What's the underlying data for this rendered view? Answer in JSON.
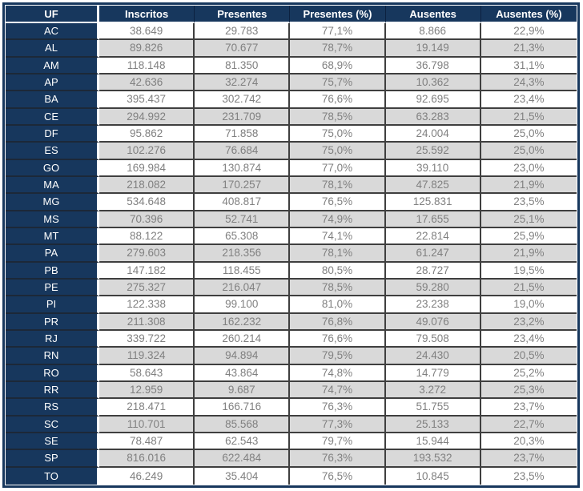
{
  "chart_data": {
    "type": "table",
    "title": "",
    "columns": [
      "UF",
      "Inscritos",
      "Presentes",
      "Presentes (%)",
      "Ausentes",
      "Ausentes (%)"
    ],
    "rows": [
      [
        "AC",
        "38.649",
        "29.783",
        "77,1%",
        "8.866",
        "22,9%"
      ],
      [
        "AL",
        "89.826",
        "70.677",
        "78,7%",
        "19.149",
        "21,3%"
      ],
      [
        "AM",
        "118.148",
        "81.350",
        "68,9%",
        "36.798",
        "31,1%"
      ],
      [
        "AP",
        "42.636",
        "32.274",
        "75,7%",
        "10.362",
        "24,3%"
      ],
      [
        "BA",
        "395.437",
        "302.742",
        "76,6%",
        "92.695",
        "23,4%"
      ],
      [
        "CE",
        "294.992",
        "231.709",
        "78,5%",
        "63.283",
        "21,5%"
      ],
      [
        "DF",
        "95.862",
        "71.858",
        "75,0%",
        "24.004",
        "25,0%"
      ],
      [
        "ES",
        "102.276",
        "76.684",
        "75,0%",
        "25.592",
        "25,0%"
      ],
      [
        "GO",
        "169.984",
        "130.874",
        "77,0%",
        "39.110",
        "23,0%"
      ],
      [
        "MA",
        "218.082",
        "170.257",
        "78,1%",
        "47.825",
        "21,9%"
      ],
      [
        "MG",
        "534.648",
        "408.817",
        "76,5%",
        "125.831",
        "23,5%"
      ],
      [
        "MS",
        "70.396",
        "52.741",
        "74,9%",
        "17.655",
        "25,1%"
      ],
      [
        "MT",
        "88.122",
        "65.308",
        "74,1%",
        "22.814",
        "25,9%"
      ],
      [
        "PA",
        "279.603",
        "218.356",
        "78,1%",
        "61.247",
        "21,9%"
      ],
      [
        "PB",
        "147.182",
        "118.455",
        "80,5%",
        "28.727",
        "19,5%"
      ],
      [
        "PE",
        "275.327",
        "216.047",
        "78,5%",
        "59.280",
        "21,5%"
      ],
      [
        "PI",
        "122.338",
        "99.100",
        "81,0%",
        "23.238",
        "19,0%"
      ],
      [
        "PR",
        "211.308",
        "162.232",
        "76,8%",
        "49.076",
        "23,2%"
      ],
      [
        "RJ",
        "339.722",
        "260.214",
        "76,6%",
        "79.508",
        "23,4%"
      ],
      [
        "RN",
        "119.324",
        "94.894",
        "79,5%",
        "24.430",
        "20,5%"
      ],
      [
        "RO",
        "58.643",
        "43.864",
        "74,8%",
        "14.779",
        "25,2%"
      ],
      [
        "RR",
        "12.959",
        "9.687",
        "74,7%",
        "3.272",
        "25,3%"
      ],
      [
        "RS",
        "218.471",
        "166.716",
        "76,3%",
        "51.755",
        "23,7%"
      ],
      [
        "SC",
        "110.701",
        "85.568",
        "77,3%",
        "25.133",
        "22,7%"
      ],
      [
        "SE",
        "78.487",
        "62.543",
        "79,7%",
        "15.944",
        "20,3%"
      ],
      [
        "SP",
        "816.016",
        "622.484",
        "76,3%",
        "193.532",
        "23,7%"
      ],
      [
        "TO",
        "46.249",
        "35.404",
        "76,5%",
        "10.845",
        "23,5%"
      ]
    ]
  },
  "colors": {
    "header_bg": "#17375d",
    "outer_border": "#17375d",
    "header_separator": "#0c2140",
    "grid_line": "#3f3f3f",
    "row_bg": "#ffffff",
    "row_alt_bg": "#d9d9d9",
    "value_text": "#808080",
    "header_text": "#ffffff"
  }
}
